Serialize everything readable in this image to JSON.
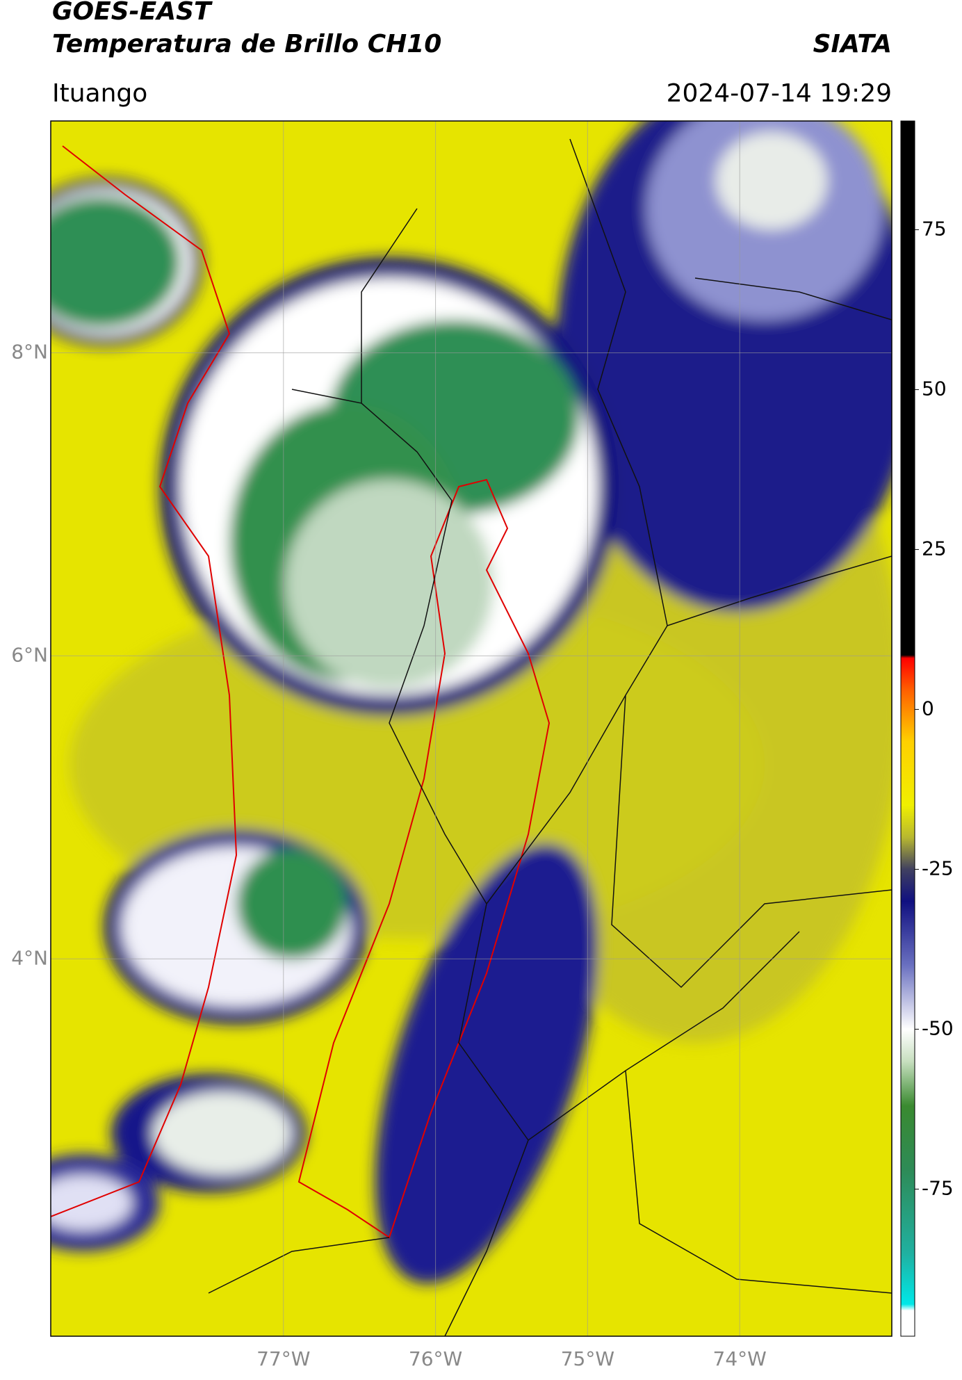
{
  "header": {
    "satellite": "GOES-EAST",
    "product": "Temperatura de Brillo CH10",
    "source": "SIATA",
    "region": "Ituango",
    "datetime": "2024-07-14 19:29"
  },
  "map": {
    "lonlim": [
      -78.53,
      -73.0
    ],
    "latlim": [
      1.51,
      9.53
    ],
    "lat_ticks": [
      {
        "value": 8,
        "label": "8°N"
      },
      {
        "value": 6,
        "label": "6°N"
      },
      {
        "value": 4,
        "label": "4°N"
      }
    ],
    "lon_ticks": [
      {
        "value": -77,
        "label": "77°W"
      },
      {
        "value": -76,
        "label": "76°W"
      },
      {
        "value": -75,
        "label": "75°W"
      },
      {
        "value": -74,
        "label": "74°W"
      }
    ],
    "grid": true
  },
  "colorbar": {
    "lim": [
      -98,
      92
    ],
    "ticks": [
      75,
      50,
      25,
      0,
      -25,
      -50,
      -75
    ],
    "stops": [
      {
        "value": -98,
        "color": "#ffffff"
      },
      {
        "value": -94,
        "color": "#ffffff"
      },
      {
        "value": -93,
        "color": "#00e8e8"
      },
      {
        "value": -85,
        "color": "#20b0a0"
      },
      {
        "value": -72,
        "color": "#2e8b57"
      },
      {
        "value": -62,
        "color": "#3a8a30"
      },
      {
        "value": -55,
        "color": "#c8e0c0"
      },
      {
        "value": -50,
        "color": "#ffffff"
      },
      {
        "value": -40,
        "color": "#6a70c0"
      },
      {
        "value": -30,
        "color": "#101080"
      },
      {
        "value": -25,
        "color": "#404060"
      },
      {
        "value": -20,
        "color": "#b8b830"
      },
      {
        "value": -15,
        "color": "#f0f000"
      },
      {
        "value": -5,
        "color": "#ffd000"
      },
      {
        "value": 3,
        "color": "#ff6000"
      },
      {
        "value": 8,
        "color": "#ff0000"
      },
      {
        "value": 8.5,
        "color": "#000000"
      },
      {
        "value": 92,
        "color": "#000000"
      }
    ]
  }
}
